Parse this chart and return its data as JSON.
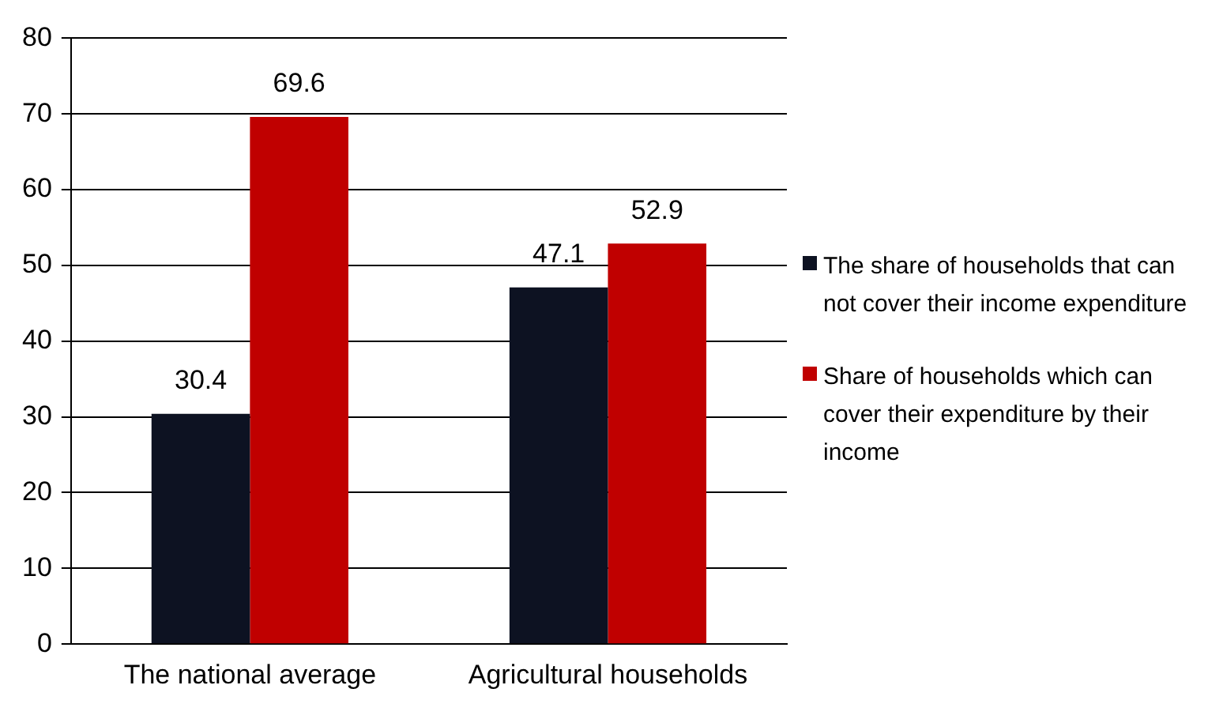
{
  "chart_data": {
    "type": "bar",
    "categories": [
      "The national average",
      "Agricultural households"
    ],
    "series": [
      {
        "name": "The share of households that can not cover their income expenditure",
        "color": "#0d1222",
        "values": [
          30.4,
          47.1
        ]
      },
      {
        "name": "Share of households which can cover their expenditure by their income",
        "color": "#c00000",
        "values": [
          69.6,
          52.9
        ]
      }
    ],
    "ylim": [
      0,
      80
    ],
    "yticks": [
      0,
      10,
      20,
      30,
      40,
      50,
      60,
      70,
      80
    ],
    "grid": "y",
    "legend": "right",
    "data_labels": true
  }
}
